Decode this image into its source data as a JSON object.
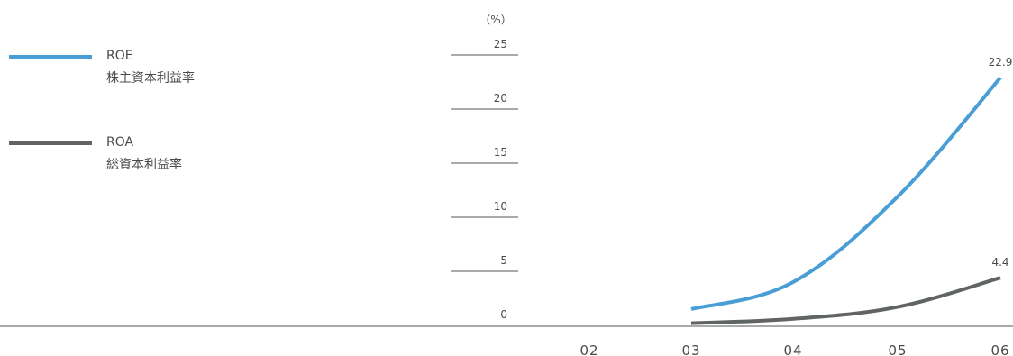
{
  "chart_data": {
    "type": "line",
    "unit_label": "（%）",
    "x": [
      "02",
      "03",
      "04",
      "05",
      "06"
    ],
    "ylim": [
      0,
      25
    ],
    "yticks": [
      "0",
      "5",
      "10",
      "15",
      "20",
      "25"
    ],
    "series": [
      {
        "name": "ROE",
        "name_sub": "株主資本利益率",
        "color": "#4a9ed6",
        "values": [
          null,
          1.5,
          4.0,
          11.9,
          22.9
        ],
        "end_label": "22.9"
      },
      {
        "name": "ROA",
        "name_sub": "総資本利益率",
        "color": "#606463",
        "values": [
          null,
          0.2,
          0.6,
          1.7,
          4.4
        ],
        "end_label": "4.4"
      }
    ]
  }
}
